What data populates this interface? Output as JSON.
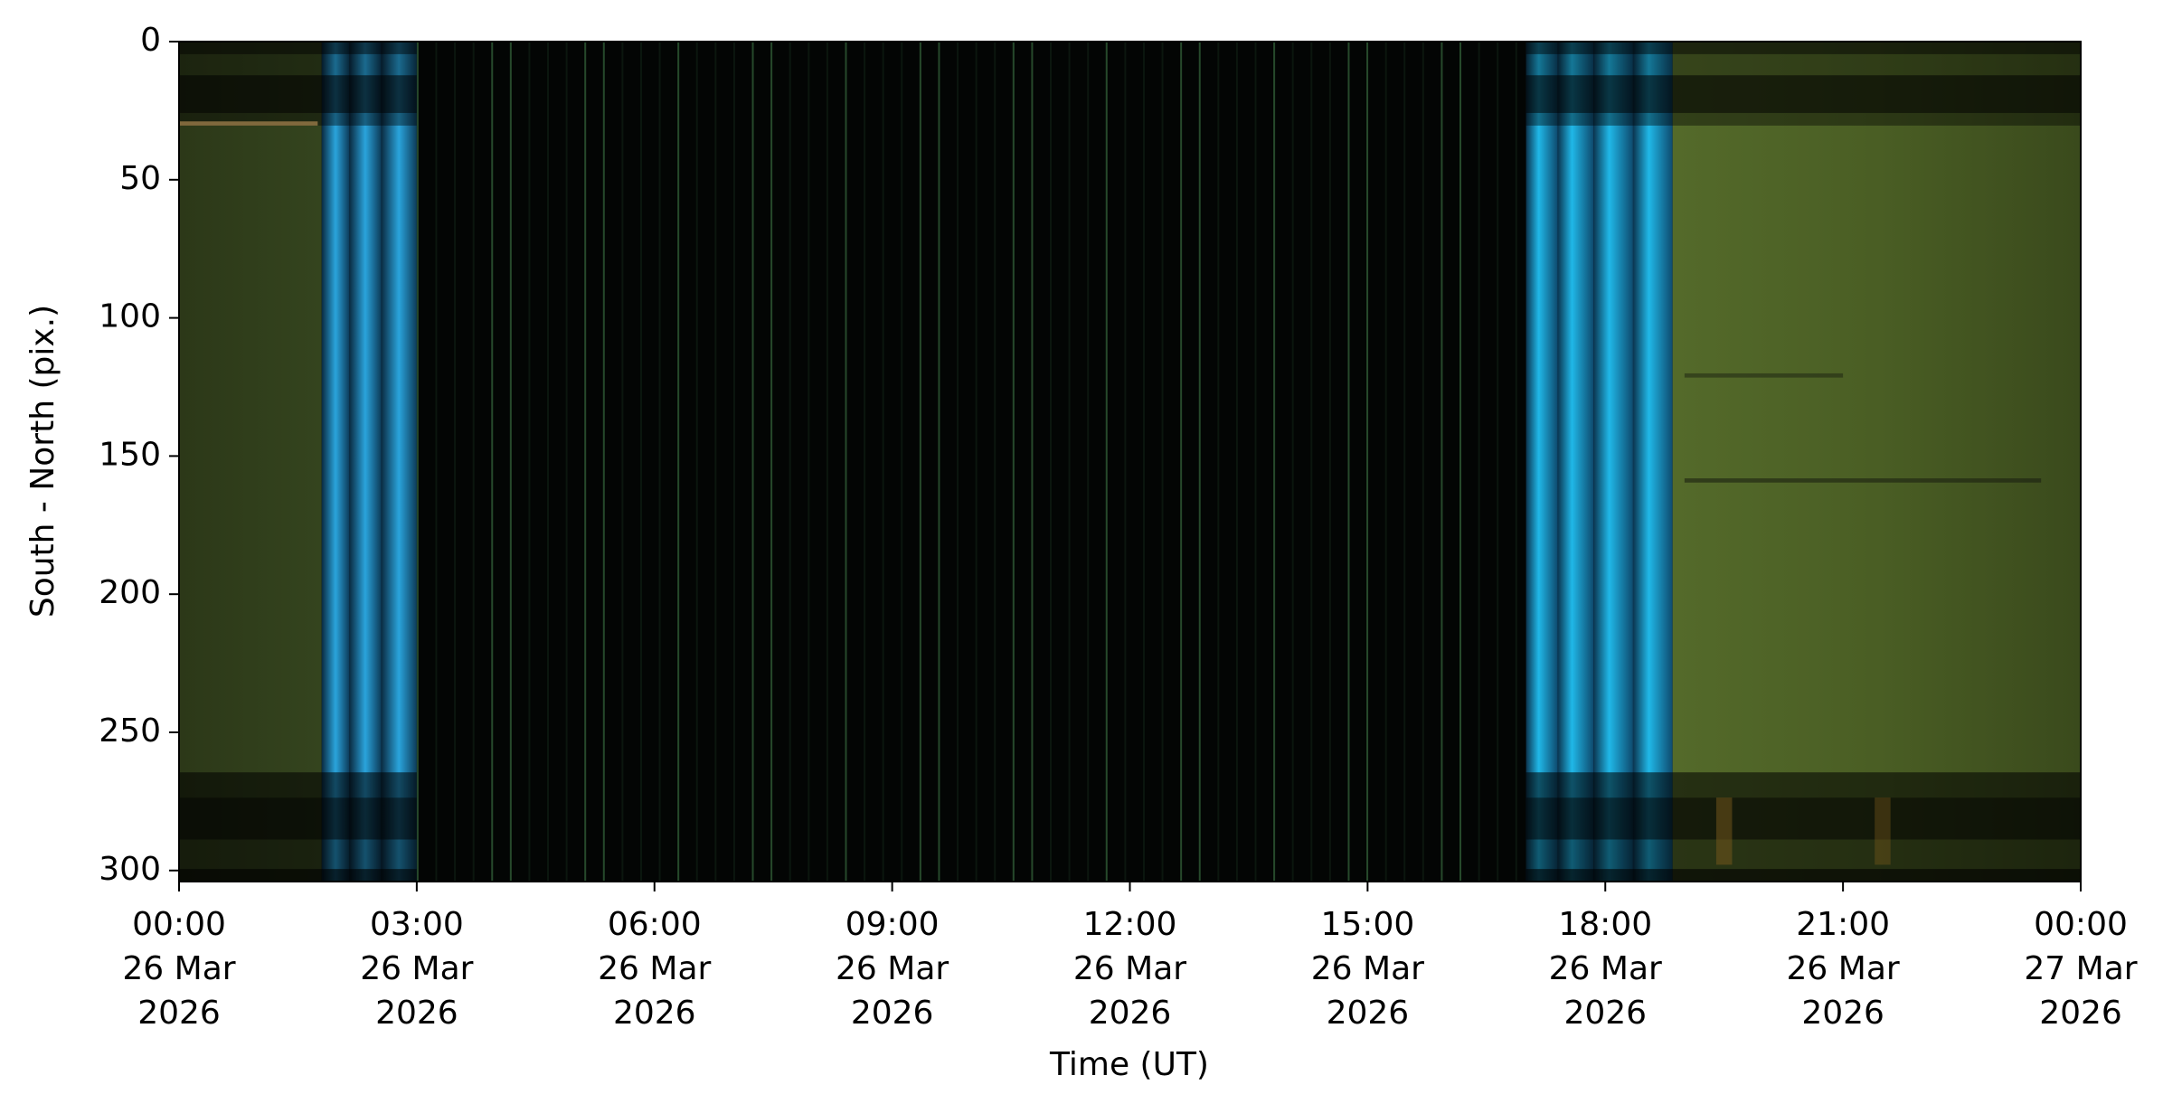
{
  "chart_data": {
    "type": "image",
    "x_label": "Time (UT)",
    "y_label": "South - North (pix.)",
    "xlim": [
      "2026-03-26T00:00",
      "2026-03-27T00:00"
    ],
    "xticks": [
      {
        "value": "2026-03-26T00:00",
        "label": "00:00\n26 Mar\n2026"
      },
      {
        "value": "2026-03-26T03:00",
        "label": "03:00\n26 Mar\n2026"
      },
      {
        "value": "2026-03-26T06:00",
        "label": "06:00\n26 Mar\n2026"
      },
      {
        "value": "2026-03-26T09:00",
        "label": "09:00\n26 Mar\n2026"
      },
      {
        "value": "2026-03-26T12:00",
        "label": "12:00\n26 Mar\n2026"
      },
      {
        "value": "2026-03-26T15:00",
        "label": "15:00\n26 Mar\n2026"
      },
      {
        "value": "2026-03-26T18:00",
        "label": "18:00\n26 Mar\n2026"
      },
      {
        "value": "2026-03-26T21:00",
        "label": "21:00\n26 Mar\n2026"
      },
      {
        "value": "2026-03-27T00:00",
        "label": "00:00\n27 Mar\n2026"
      }
    ],
    "ylim": [
      0,
      304
    ],
    "y_inverted": true,
    "yticks": [
      0,
      50,
      100,
      150,
      200,
      250,
      300
    ]
  }
}
